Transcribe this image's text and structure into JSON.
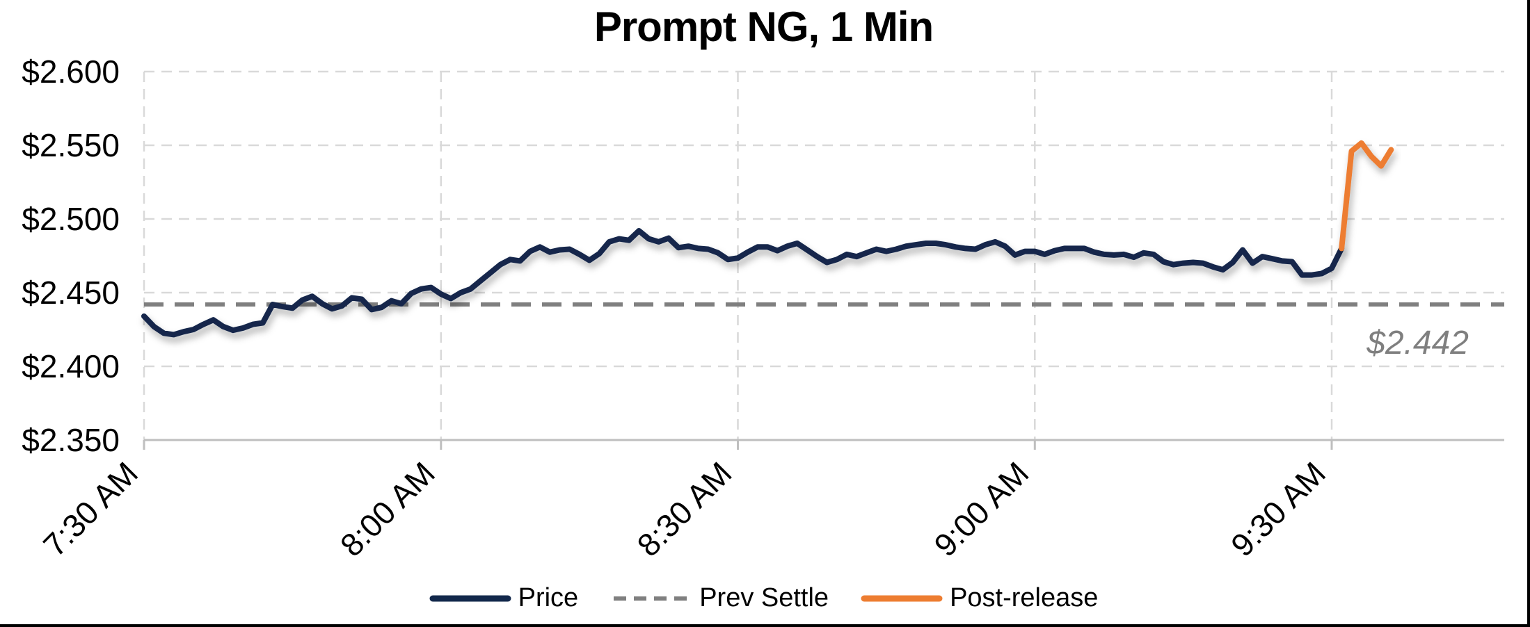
{
  "window": {
    "background": "#FFFFFF",
    "border_color": "#000000"
  },
  "chart_data": {
    "type": "line",
    "title": "Prompt NG, 1 Min",
    "x_axis": {
      "tick_labels": [
        "7:30 AM",
        "8:00 AM",
        "8:30 AM",
        "9:00 AM",
        "9:30 AM"
      ],
      "interval_minutes": 30,
      "start_time": "7:30",
      "end_time": "9:47"
    },
    "y_axis": {
      "tick_labels": [
        "$2.600",
        "$2.550",
        "$2.500",
        "$2.450",
        "$2.400",
        "$2.350"
      ],
      "min": 2.35,
      "max": 2.6,
      "tick_step": 0.05,
      "unit": "$"
    },
    "grid": {
      "horizontal": true,
      "vertical": true,
      "color": "#D9D9D9",
      "style": "dashed"
    },
    "axis_color": "#BFBFBF",
    "reference_line": {
      "name": "Prev Settle",
      "value": 2.442,
      "label": "$2.442",
      "color": "#7F7F7F",
      "style": "dashed"
    },
    "legend": {
      "position": "bottom",
      "items": [
        {
          "label": "Price",
          "color": "#12284B",
          "style": "solid"
        },
        {
          "label": "Prev Settle",
          "color": "#7F7F7F",
          "style": "dashed"
        },
        {
          "label": "Post-release",
          "color": "#ED7D31",
          "style": "solid"
        }
      ]
    },
    "series": [
      {
        "name": "Price",
        "color": "#12284B",
        "style": "solid",
        "points": [
          [
            "7:30",
            2.434
          ],
          [
            "7:31",
            2.427
          ],
          [
            "7:32",
            2.4225
          ],
          [
            "7:33",
            2.4215
          ],
          [
            "7:34",
            2.4235
          ],
          [
            "7:35",
            2.425
          ],
          [
            "7:36",
            2.4285
          ],
          [
            "7:37",
            2.4315
          ],
          [
            "7:38",
            2.427
          ],
          [
            "7:39",
            2.4245
          ],
          [
            "7:40",
            2.426
          ],
          [
            "7:41",
            2.4285
          ],
          [
            "7:42",
            2.4295
          ],
          [
            "7:43",
            2.442
          ],
          [
            "7:44",
            2.4405
          ],
          [
            "7:45",
            2.4395
          ],
          [
            "7:46",
            2.445
          ],
          [
            "7:47",
            2.4475
          ],
          [
            "7:48",
            2.4425
          ],
          [
            "7:49",
            2.439
          ],
          [
            "7:50",
            2.441
          ],
          [
            "7:51",
            2.4465
          ],
          [
            "7:52",
            2.4455
          ],
          [
            "7:53",
            2.4385
          ],
          [
            "7:54",
            2.44
          ],
          [
            "7:55",
            2.4445
          ],
          [
            "7:56",
            2.4425
          ],
          [
            "7:57",
            2.4495
          ],
          [
            "7:58",
            2.4525
          ],
          [
            "7:59",
            2.4535
          ],
          [
            "8:00",
            2.449
          ],
          [
            "8:01",
            2.446
          ],
          [
            "8:02",
            2.45
          ],
          [
            "8:03",
            2.4525
          ],
          [
            "8:04",
            2.458
          ],
          [
            "8:05",
            2.4635
          ],
          [
            "8:06",
            2.469
          ],
          [
            "8:07",
            2.4725
          ],
          [
            "8:08",
            2.4715
          ],
          [
            "8:09",
            2.478
          ],
          [
            "8:10",
            2.481
          ],
          [
            "8:11",
            2.4775
          ],
          [
            "8:12",
            2.479
          ],
          [
            "8:13",
            2.4795
          ],
          [
            "8:14",
            2.476
          ],
          [
            "8:15",
            2.472
          ],
          [
            "8:16",
            2.4765
          ],
          [
            "8:17",
            2.4845
          ],
          [
            "8:18",
            2.4865
          ],
          [
            "8:19",
            2.4855
          ],
          [
            "8:20",
            2.492
          ],
          [
            "8:21",
            2.4865
          ],
          [
            "8:22",
            2.4845
          ],
          [
            "8:23",
            2.487
          ],
          [
            "8:24",
            2.4805
          ],
          [
            "8:25",
            2.4815
          ],
          [
            "8:26",
            2.48
          ],
          [
            "8:27",
            2.4795
          ],
          [
            "8:28",
            2.477
          ],
          [
            "8:29",
            2.4725
          ],
          [
            "8:30",
            2.4735
          ],
          [
            "8:31",
            2.4775
          ],
          [
            "8:32",
            2.481
          ],
          [
            "8:33",
            2.481
          ],
          [
            "8:34",
            2.4785
          ],
          [
            "8:35",
            2.4815
          ],
          [
            "8:36",
            2.4835
          ],
          [
            "8:37",
            2.479
          ],
          [
            "8:38",
            2.4745
          ],
          [
            "8:39",
            2.4705
          ],
          [
            "8:40",
            2.4725
          ],
          [
            "8:41",
            2.476
          ],
          [
            "8:42",
            2.4745
          ],
          [
            "8:43",
            2.477
          ],
          [
            "8:44",
            2.4795
          ],
          [
            "8:45",
            2.478
          ],
          [
            "8:46",
            2.4795
          ],
          [
            "8:47",
            2.4815
          ],
          [
            "8:48",
            2.4825
          ],
          [
            "8:49",
            2.4835
          ],
          [
            "8:50",
            2.4835
          ],
          [
            "8:51",
            2.4825
          ],
          [
            "8:52",
            2.481
          ],
          [
            "8:53",
            2.48
          ],
          [
            "8:54",
            2.4795
          ],
          [
            "8:55",
            2.4825
          ],
          [
            "8:56",
            2.4845
          ],
          [
            "8:57",
            2.4815
          ],
          [
            "8:58",
            2.4755
          ],
          [
            "8:59",
            2.478
          ],
          [
            "9:00",
            2.478
          ],
          [
            "9:01",
            2.476
          ],
          [
            "9:02",
            2.4785
          ],
          [
            "9:03",
            2.48
          ],
          [
            "9:04",
            2.48
          ],
          [
            "9:05",
            2.48
          ],
          [
            "9:06",
            2.4775
          ],
          [
            "9:07",
            2.476
          ],
          [
            "9:08",
            2.4755
          ],
          [
            "9:09",
            2.476
          ],
          [
            "9:10",
            2.474
          ],
          [
            "9:11",
            2.477
          ],
          [
            "9:12",
            2.476
          ],
          [
            "9:13",
            2.471
          ],
          [
            "9:14",
            2.469
          ],
          [
            "9:15",
            2.47
          ],
          [
            "9:16",
            2.4705
          ],
          [
            "9:17",
            2.47
          ],
          [
            "9:18",
            2.4675
          ],
          [
            "9:19",
            2.4655
          ],
          [
            "9:20",
            2.4705
          ],
          [
            "9:21",
            2.479
          ],
          [
            "9:22",
            2.47
          ],
          [
            "9:23",
            2.4745
          ],
          [
            "9:24",
            2.473
          ],
          [
            "9:25",
            2.4715
          ],
          [
            "9:26",
            2.471
          ],
          [
            "9:27",
            2.462
          ],
          [
            "9:28",
            2.462
          ],
          [
            "9:29",
            2.463
          ],
          [
            "9:30",
            2.4665
          ],
          [
            "9:31",
            2.48
          ]
        ]
      },
      {
        "name": "Post-release",
        "color": "#ED7D31",
        "style": "solid",
        "points": [
          [
            "9:31",
            2.48
          ],
          [
            "9:32",
            2.546
          ],
          [
            "9:33",
            2.5515
          ],
          [
            "9:34",
            2.5425
          ],
          [
            "9:35",
            2.536
          ],
          [
            "9:36",
            2.547
          ]
        ]
      }
    ]
  }
}
